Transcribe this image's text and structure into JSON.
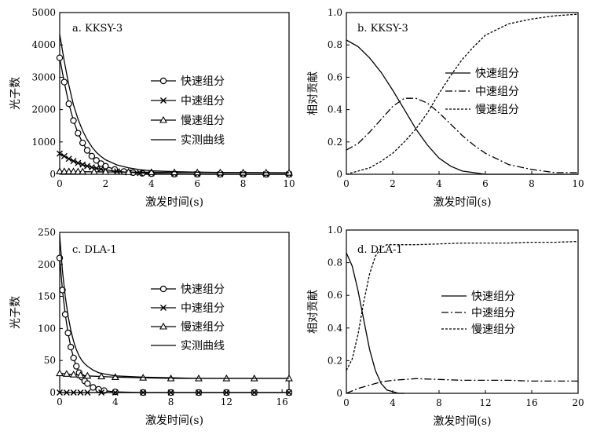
{
  "chart_data": [
    {
      "type": "line",
      "panel_title": "a. KKSY-3",
      "xlabel": "激发时间(s)",
      "ylabel": "光子数",
      "xlim": [
        0,
        10
      ],
      "ylim": [
        0,
        5000
      ],
      "xticks": [
        "0",
        "2",
        "4",
        "6",
        "8",
        "10"
      ],
      "yticks": [
        "0",
        "1000",
        "2000",
        "3000",
        "4000",
        "5000"
      ],
      "legend_position": "center-right",
      "series": [
        {
          "name": "快速组分",
          "marker": "circle",
          "x": [
            0,
            0.2,
            0.4,
            0.6,
            0.8,
            1.0,
            1.2,
            1.4,
            1.6,
            1.8,
            2.0,
            2.4,
            2.8,
            3.2,
            3.6,
            4.0,
            5.0,
            6.0,
            7.0,
            8.0,
            9.0,
            10.0
          ],
          "y": [
            3600,
            2850,
            2180,
            1660,
            1270,
            970,
            740,
            560,
            430,
            330,
            250,
            150,
            85,
            50,
            30,
            18,
            5,
            2,
            1,
            0,
            0,
            0
          ]
        },
        {
          "name": "中速组分",
          "marker": "x",
          "x": [
            0,
            0.2,
            0.4,
            0.6,
            0.8,
            1.0,
            1.2,
            1.4,
            1.6,
            1.8,
            2.0,
            2.5,
            3.0,
            3.5,
            4.0,
            5.0,
            6.0,
            7.0,
            8.0,
            9.0,
            10.0
          ],
          "y": [
            640,
            560,
            480,
            410,
            350,
            300,
            255,
            215,
            185,
            160,
            135,
            90,
            60,
            40,
            27,
            12,
            5,
            3,
            2,
            1,
            1
          ]
        },
        {
          "name": "慢速组分",
          "marker": "triangle",
          "x": [
            0,
            0.2,
            0.4,
            0.6,
            0.8,
            1.0,
            1.5,
            2.0,
            3.0,
            4.0,
            5.0,
            6.0,
            7.0,
            8.0,
            9.0,
            10.0
          ],
          "y": [
            90,
            88,
            86,
            84,
            82,
            80,
            76,
            73,
            67,
            62,
            58,
            55,
            52,
            50,
            48,
            46
          ]
        },
        {
          "name": "实测曲线",
          "marker": "none",
          "x": [
            0,
            0.2,
            0.4,
            0.6,
            0.8,
            1.0,
            1.2,
            1.4,
            1.6,
            1.8,
            2.0,
            2.5,
            3.0,
            3.5,
            4.0,
            5.0,
            6.0,
            7.0,
            8.0,
            9.0,
            10.0
          ],
          "y": [
            4330,
            3500,
            2750,
            2150,
            1700,
            1350,
            1070,
            850,
            680,
            550,
            450,
            290,
            200,
            140,
            110,
            80,
            65,
            58,
            54,
            50,
            48
          ]
        }
      ]
    },
    {
      "type": "line",
      "panel_title": "b. KKSY-3",
      "xlabel": "激发时间(s)",
      "ylabel": "相对贡献",
      "xlim": [
        0,
        10
      ],
      "ylim": [
        0,
        1.0
      ],
      "xticks": [
        "0",
        "2",
        "4",
        "6",
        "8",
        "10"
      ],
      "yticks": [
        "0",
        "0.2",
        "0.4",
        "0.6",
        "0.8",
        "1.0"
      ],
      "legend_position": "center-right",
      "series": [
        {
          "name": "快速组分",
          "dash": "solid",
          "x": [
            0,
            0.5,
            1,
            1.5,
            2,
            2.5,
            3,
            3.5,
            4,
            4.5,
            5,
            5.5,
            6,
            7,
            8,
            9,
            10
          ],
          "y": [
            0.83,
            0.79,
            0.72,
            0.63,
            0.52,
            0.4,
            0.28,
            0.18,
            0.1,
            0.05,
            0.02,
            0.01,
            0.0,
            0.0,
            0.0,
            0.0,
            0.0
          ]
        },
        {
          "name": "中速组分",
          "dash": "dashdot",
          "x": [
            0,
            0.5,
            1,
            1.5,
            2,
            2.5,
            3,
            3.5,
            4,
            4.5,
            5,
            5.5,
            6,
            7,
            8,
            9,
            10
          ],
          "y": [
            0.15,
            0.19,
            0.26,
            0.34,
            0.42,
            0.47,
            0.47,
            0.44,
            0.38,
            0.31,
            0.24,
            0.18,
            0.13,
            0.06,
            0.03,
            0.01,
            0.01
          ]
        },
        {
          "name": "慢速组分",
          "dash": "dashed",
          "x": [
            0,
            0.5,
            1,
            1.5,
            2,
            2.5,
            3,
            3.5,
            4,
            4.5,
            5,
            5.5,
            6,
            7,
            8,
            9,
            10
          ],
          "y": [
            0.0,
            0.02,
            0.04,
            0.08,
            0.13,
            0.2,
            0.28,
            0.38,
            0.5,
            0.61,
            0.71,
            0.79,
            0.86,
            0.93,
            0.96,
            0.98,
            0.99
          ]
        }
      ]
    },
    {
      "type": "line",
      "panel_title": "c. DLA-1",
      "xlabel": "激发时间(s)",
      "ylabel": "光子数",
      "xlim": [
        0,
        16.5
      ],
      "ylim": [
        0,
        250
      ],
      "xticks": [
        "0",
        "4",
        "8",
        "12",
        "16"
      ],
      "yticks": [
        "0",
        "50",
        "100",
        "150",
        "200",
        "250"
      ],
      "legend_position": "center-right",
      "series": [
        {
          "name": "快速组分",
          "marker": "circle",
          "x": [
            0,
            0.2,
            0.4,
            0.6,
            0.8,
            1.0,
            1.2,
            1.4,
            1.6,
            1.8,
            2.0,
            2.4,
            2.8,
            3.2,
            4,
            6,
            8,
            10,
            12,
            14,
            16.5
          ],
          "y": [
            210,
            160,
            122,
            93,
            71,
            54,
            41,
            31,
            24,
            18,
            14,
            8,
            5,
            3,
            1,
            0,
            0,
            0,
            0,
            0,
            0
          ]
        },
        {
          "name": "中速组分",
          "marker": "x",
          "x": [
            0,
            0.5,
            1,
            1.5,
            2,
            3,
            4,
            6,
            8,
            10,
            12,
            14,
            16.5
          ],
          "y": [
            0,
            0,
            0,
            0,
            0,
            0,
            0,
            0,
            0,
            0,
            0,
            0,
            0
          ]
        },
        {
          "name": "慢速组分",
          "marker": "triangle",
          "x": [
            0,
            0.5,
            1,
            1.5,
            2,
            3,
            4,
            6,
            8,
            10,
            12,
            14,
            16.5
          ],
          "y": [
            30,
            29,
            28,
            27,
            26,
            25,
            24,
            23,
            22,
            22,
            22,
            22,
            22
          ]
        },
        {
          "name": "实测曲线",
          "marker": "none",
          "x": [
            0,
            0.2,
            0.4,
            0.6,
            0.8,
            1.0,
            1.2,
            1.4,
            1.6,
            1.8,
            2.0,
            2.4,
            2.8,
            3.2,
            4,
            6,
            8,
            10,
            12,
            14,
            16.5
          ],
          "y": [
            245,
            190,
            150,
            120,
            97,
            80,
            67,
            57,
            50,
            45,
            41,
            35,
            31,
            29,
            26,
            24,
            23,
            22,
            22,
            22,
            22
          ]
        }
      ]
    },
    {
      "type": "line",
      "panel_title": "d. DLA-1",
      "xlabel": "激发时间(s)",
      "ylabel": "相对贡献",
      "xlim": [
        0,
        20
      ],
      "ylim": [
        0,
        1.0
      ],
      "xticks": [
        "0",
        "4",
        "8",
        "12",
        "16",
        "20"
      ],
      "yticks": [
        "0",
        "0.2",
        "0.4",
        "0.6",
        "0.8",
        "1.0"
      ],
      "legend_position": "center-right",
      "series": [
        {
          "name": "快速组分",
          "dash": "solid",
          "x": [
            0,
            0.5,
            1,
            1.5,
            2,
            2.5,
            3,
            3.5,
            4,
            4.5,
            5
          ],
          "y": [
            0.86,
            0.78,
            0.63,
            0.45,
            0.27,
            0.14,
            0.06,
            0.02,
            0.01,
            0.0,
            0.0
          ]
        },
        {
          "name": "中速组分",
          "dash": "dashdot",
          "x": [
            0,
            1,
            2,
            3,
            4,
            6,
            8,
            10,
            12,
            14,
            16,
            18,
            20
          ],
          "y": [
            0.0,
            0.03,
            0.05,
            0.07,
            0.08,
            0.09,
            0.085,
            0.08,
            0.08,
            0.08,
            0.075,
            0.075,
            0.075
          ]
        },
        {
          "name": "慢速组分",
          "dash": "dashed",
          "x": [
            0,
            0.5,
            1,
            1.5,
            2,
            2.5,
            3,
            3.5,
            4,
            6,
            8,
            10,
            12,
            14,
            16,
            18,
            20
          ],
          "y": [
            0.14,
            0.21,
            0.36,
            0.56,
            0.73,
            0.84,
            0.89,
            0.91,
            0.91,
            0.91,
            0.915,
            0.92,
            0.92,
            0.92,
            0.925,
            0.925,
            0.93
          ]
        }
      ]
    }
  ]
}
